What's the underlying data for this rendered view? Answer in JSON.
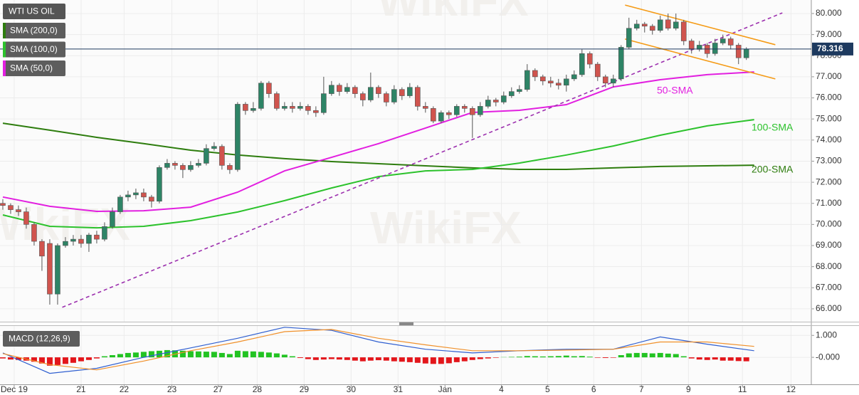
{
  "chart_data": {
    "type": "candlestick",
    "title": "WTI US OIL",
    "watermark": "WikiFX",
    "grid": true,
    "xlim": [
      -0.36,
      103.3
    ],
    "xticks": [
      {
        "value": 1.45,
        "label": "Dec 19"
      },
      {
        "value": 10,
        "label": "21"
      },
      {
        "value": 15.5,
        "label": "22"
      },
      {
        "value": 21.6,
        "label": "23"
      },
      {
        "value": 27.5,
        "label": "27"
      },
      {
        "value": 32.5,
        "label": "28"
      },
      {
        "value": 38.5,
        "label": "29"
      },
      {
        "value": 44.5,
        "label": "30"
      },
      {
        "value": 50.5,
        "label": "31"
      },
      {
        "value": 56.5,
        "label": "Jan"
      },
      {
        "value": 63.7,
        "label": "4"
      },
      {
        "value": 69.6,
        "label": "5"
      },
      {
        "value": 75.5,
        "label": "6"
      },
      {
        "value": 81.6,
        "label": "7"
      },
      {
        "value": 87.6,
        "label": "9"
      },
      {
        "value": 94.5,
        "label": "11"
      },
      {
        "value": 100.7,
        "label": "12"
      }
    ],
    "ylim": [
      65.39,
      80.64
    ],
    "yticks": [
      {
        "value": 66,
        "label": "66.000"
      },
      {
        "value": 67,
        "label": "67.000"
      },
      {
        "value": 68,
        "label": "68.000"
      },
      {
        "value": 69,
        "label": "69.000"
      },
      {
        "value": 70,
        "label": "70.000"
      },
      {
        "value": 71,
        "label": "71.000"
      },
      {
        "value": 72,
        "label": "72.000"
      },
      {
        "value": 73,
        "label": "73.000"
      },
      {
        "value": 74,
        "label": "74.000"
      },
      {
        "value": 75,
        "label": "75.000"
      },
      {
        "value": 76,
        "label": "76.000"
      },
      {
        "value": 77,
        "label": "77.000"
      },
      {
        "value": 78,
        "label": "78.000"
      },
      {
        "value": 79,
        "label": "79.000"
      },
      {
        "value": 80,
        "label": "80.000"
      }
    ],
    "candles": {
      "up_color": "#2e8466",
      "down_color": "#d0544e",
      "price_line_color": "#1e3a5f",
      "x": [
        0,
        1,
        2,
        3,
        4,
        5,
        6,
        7,
        8,
        9,
        10,
        11,
        12,
        13,
        14,
        15,
        16,
        17,
        18,
        19,
        20,
        21,
        22,
        23,
        24,
        25,
        26,
        27,
        28,
        29,
        30,
        31,
        32,
        33,
        34,
        35,
        36,
        37,
        38,
        39,
        40,
        41,
        42,
        43,
        44,
        45,
        46,
        47,
        48,
        49,
        50,
        51,
        52,
        53,
        54,
        55,
        56,
        57,
        58,
        59,
        60,
        61,
        62,
        63,
        64,
        65,
        66,
        67,
        68,
        69,
        70,
        71,
        72,
        73,
        74,
        75,
        76,
        77,
        78,
        79,
        80,
        81,
        82,
        83,
        84,
        85,
        86,
        87,
        88,
        89,
        90,
        91,
        92,
        93,
        94,
        95
      ],
      "open": [
        71.0,
        70.9,
        70.7,
        70.6,
        70.0,
        69.2,
        69.1,
        66.7,
        69.0,
        69.2,
        69.3,
        69.1,
        69.5,
        69.3,
        69.9,
        70.6,
        71.3,
        71.4,
        71.5,
        71.3,
        71.1,
        72.7,
        72.9,
        72.8,
        72.6,
        72.8,
        72.9,
        73.6,
        73.7,
        72.8,
        72.6,
        75.7,
        75.4,
        75.5,
        76.7,
        76.2,
        75.5,
        75.6,
        75.5,
        75.6,
        75.4,
        75.3,
        76.2,
        76.6,
        76.3,
        76.5,
        76.2,
        75.9,
        76.5,
        76.2,
        75.8,
        76.4,
        76.1,
        76.5,
        75.6,
        75.5,
        74.9,
        75.3,
        75.2,
        75.6,
        75.5,
        75.2,
        75.6,
        75.9,
        75.8,
        76.1,
        76.3,
        76.4,
        77.3,
        77.0,
        76.8,
        76.7,
        76.6,
        76.9,
        77.1,
        78.1,
        77.6,
        77.0,
        76.7,
        76.9,
        78.4,
        79.3,
        79.5,
        79.4,
        79.2,
        79.7,
        79.3,
        79.6,
        78.7,
        78.3,
        78.5,
        78.1,
        78.6,
        78.8,
        78.5,
        77.9
      ],
      "high": [
        71.2,
        71.0,
        70.9,
        70.8,
        70.1,
        69.3,
        69.3,
        69.1,
        69.4,
        69.5,
        69.5,
        69.6,
        69.7,
        70.1,
        70.8,
        71.4,
        71.6,
        71.7,
        71.7,
        71.4,
        72.8,
        73.1,
        73.0,
        72.9,
        73.0,
        73.1,
        73.8,
        73.9,
        73.8,
        72.9,
        75.8,
        75.8,
        75.8,
        76.8,
        76.8,
        76.3,
        75.8,
        75.8,
        75.8,
        75.7,
        75.6,
        77.0,
        76.8,
        76.7,
        76.7,
        76.6,
        76.3,
        77.2,
        76.6,
        76.3,
        76.6,
        76.5,
        76.7,
        76.6,
        75.8,
        75.6,
        75.4,
        75.4,
        75.7,
        75.7,
        75.6,
        75.8,
        76.1,
        76.0,
        76.3,
        76.5,
        76.6,
        77.6,
        77.4,
        77.1,
        77.0,
        76.9,
        77.1,
        77.3,
        78.3,
        78.2,
        77.7,
        77.1,
        77.1,
        78.5,
        79.8,
        79.7,
        79.6,
        79.5,
        79.9,
        80.0,
        80.0,
        79.7,
        78.8,
        78.7,
        78.6,
        78.8,
        79.0,
        78.9,
        78.6,
        78.4
      ],
      "low": [
        70.7,
        70.5,
        70.4,
        69.8,
        69.0,
        67.8,
        66.2,
        66.2,
        68.9,
        69.0,
        68.9,
        68.7,
        69.1,
        69.2,
        69.8,
        70.5,
        71.1,
        71.2,
        71.1,
        70.8,
        71.0,
        72.6,
        72.6,
        72.2,
        72.5,
        72.7,
        72.8,
        73.5,
        72.6,
        72.4,
        72.5,
        75.2,
        75.3,
        75.4,
        76.0,
        75.4,
        75.4,
        75.3,
        75.4,
        75.2,
        75.1,
        75.2,
        76.1,
        76.1,
        76.2,
        76.0,
        75.6,
        75.8,
        76.0,
        75.6,
        75.7,
        75.9,
        76.0,
        75.4,
        75.3,
        74.8,
        74.8,
        75.0,
        75.1,
        75.3,
        74.1,
        75.1,
        75.5,
        75.6,
        75.7,
        76.0,
        76.2,
        76.3,
        76.8,
        76.6,
        76.5,
        76.4,
        76.3,
        76.8,
        77.0,
        77.4,
        76.8,
        76.5,
        76.5,
        76.8,
        78.3,
        79.2,
        79.1,
        79.0,
        79.1,
        79.2,
        79.2,
        78.5,
        78.1,
        78.2,
        77.9,
        78.0,
        78.5,
        78.3,
        77.6,
        77.8
      ],
      "close": [
        70.9,
        70.7,
        70.6,
        70.0,
        69.2,
        68.5,
        66.7,
        69.0,
        69.2,
        69.3,
        69.1,
        69.5,
        69.3,
        69.9,
        70.6,
        71.3,
        71.4,
        71.5,
        71.3,
        71.1,
        72.7,
        72.9,
        72.8,
        72.6,
        72.8,
        72.9,
        73.6,
        73.7,
        72.8,
        72.6,
        75.7,
        75.4,
        75.5,
        76.7,
        76.2,
        75.5,
        75.6,
        75.5,
        75.6,
        75.4,
        75.3,
        76.2,
        76.6,
        76.3,
        76.5,
        76.2,
        75.9,
        76.5,
        76.2,
        75.8,
        76.4,
        76.1,
        76.5,
        75.6,
        75.5,
        74.9,
        75.3,
        75.2,
        75.6,
        75.5,
        75.2,
        75.6,
        75.9,
        75.8,
        76.1,
        76.3,
        76.4,
        77.3,
        77.0,
        76.8,
        76.7,
        76.6,
        76.9,
        77.1,
        78.1,
        77.6,
        77.0,
        76.7,
        76.9,
        78.4,
        79.3,
        79.5,
        79.4,
        79.2,
        79.7,
        79.3,
        79.6,
        78.7,
        78.3,
        78.5,
        78.1,
        78.6,
        78.8,
        78.5,
        77.9,
        78.316
      ]
    },
    "series": [
      {
        "name": "SMA (200,0)",
        "annotation": "200-SMA",
        "color": "#2e7d0e",
        "x": [
          0,
          6,
          12,
          18,
          24,
          30,
          36,
          42,
          48,
          54,
          60,
          66,
          72,
          78,
          84,
          90,
          96
        ],
        "values": [
          74.8,
          74.47,
          74.13,
          73.83,
          73.52,
          73.29,
          73.12,
          72.98,
          72.88,
          72.78,
          72.68,
          72.61,
          72.61,
          72.68,
          72.75,
          72.78,
          72.81
        ]
      },
      {
        "name": "SMA (100,0)",
        "annotation": "100-SMA",
        "color": "#2cc22c",
        "x": [
          0,
          6,
          12,
          18,
          24,
          30,
          36,
          42,
          48,
          54,
          60,
          66,
          72,
          78,
          84,
          90,
          96
        ],
        "values": [
          70.45,
          69.91,
          69.84,
          69.91,
          70.18,
          70.59,
          71.13,
          71.73,
          72.27,
          72.54,
          72.61,
          72.91,
          73.29,
          73.72,
          74.23,
          74.67,
          74.97
        ]
      },
      {
        "name": "SMA (50,0)",
        "annotation": "50-SMA",
        "color": "#e21fe0",
        "x": [
          0,
          6,
          12,
          18,
          24,
          30,
          36,
          42,
          48,
          54,
          60,
          66,
          72,
          78,
          84,
          90,
          96
        ],
        "values": [
          71.3,
          70.86,
          70.62,
          70.65,
          70.82,
          71.53,
          72.54,
          73.18,
          73.83,
          74.57,
          75.31,
          75.41,
          75.68,
          76.52,
          76.86,
          77.1,
          77.23
        ]
      }
    ],
    "trendlines": [
      {
        "color": "#9c2fae",
        "dashed": true,
        "x": [
          7.6,
          99.6
        ],
        "values": [
          66.07,
          80.03
        ]
      },
      {
        "color": "#f59b16",
        "dashed": false,
        "x": [
          79.5,
          98.7
        ],
        "values": [
          80.4,
          78.52
        ]
      },
      {
        "color": "#f59b16",
        "dashed": false,
        "x": [
          79.5,
          98.7
        ],
        "values": [
          78.79,
          76.9
        ]
      }
    ],
    "macd": {
      "title": "MACD (12,26,9)",
      "ylim": [
        -1.23,
        1.43
      ],
      "yticks": [
        {
          "value": 0,
          "label": "-0.000"
        },
        {
          "value": 1,
          "label": "1.000"
        }
      ],
      "up_color": "#22c322",
      "down_color": "#e3161b",
      "histogram": [
        -0.05,
        -0.1,
        -0.12,
        -0.15,
        -0.2,
        -0.28,
        -0.38,
        -0.35,
        -0.3,
        -0.25,
        -0.18,
        -0.12,
        -0.05,
        0.05,
        0.1,
        0.15,
        0.2,
        0.22,
        0.25,
        0.28,
        0.3,
        0.33,
        0.32,
        0.3,
        0.28,
        0.27,
        0.26,
        0.25,
        0.2,
        0.15,
        0.3,
        0.28,
        0.27,
        0.25,
        0.22,
        0.18,
        0.12,
        0.05,
        -0.03,
        -0.08,
        -0.12,
        -0.1,
        -0.08,
        -0.1,
        -0.12,
        -0.15,
        -0.18,
        -0.15,
        -0.13,
        -0.15,
        -0.18,
        -0.2,
        -0.22,
        -0.25,
        -0.28,
        -0.3,
        -0.3,
        -0.27,
        -0.22,
        -0.18,
        -0.12,
        -0.08,
        -0.05,
        -0.02,
        0.01,
        0.02,
        0.03,
        0.06,
        0.05,
        0.04,
        0.05,
        0.06,
        0.08,
        0.05,
        0.06,
        0.03,
        -0.02,
        -0.03,
        -0.02,
        0.1,
        0.18,
        0.2,
        0.2,
        0.18,
        0.2,
        0.17,
        0.15,
        0.05,
        -0.05,
        -0.1,
        -0.12,
        -0.1,
        -0.15,
        -0.15,
        -0.17,
        -0.18
      ],
      "lines": [
        {
          "color": "#2f5fd0",
          "x": [
            0,
            6,
            12,
            18,
            24,
            30,
            36,
            42,
            48,
            54,
            60,
            66,
            72,
            78,
            84,
            90,
            96
          ],
          "values": [
            0.2,
            -0.73,
            -0.5,
            0,
            0.43,
            0.87,
            1.37,
            1.23,
            0.7,
            0.37,
            0.2,
            0.3,
            0.37,
            0.37,
            0.93,
            0.6,
            0.3
          ]
        },
        {
          "color": "#f0902a",
          "x": [
            0,
            6,
            12,
            18,
            24,
            30,
            36,
            42,
            48,
            54,
            60,
            66,
            72,
            78,
            84,
            90,
            96
          ],
          "values": [
            0.17,
            -0.33,
            -0.57,
            -0.17,
            0.3,
            0.7,
            1.17,
            1.27,
            0.87,
            0.57,
            0.3,
            0.3,
            0.33,
            0.37,
            0.7,
            0.7,
            0.5
          ]
        }
      ]
    }
  }
}
